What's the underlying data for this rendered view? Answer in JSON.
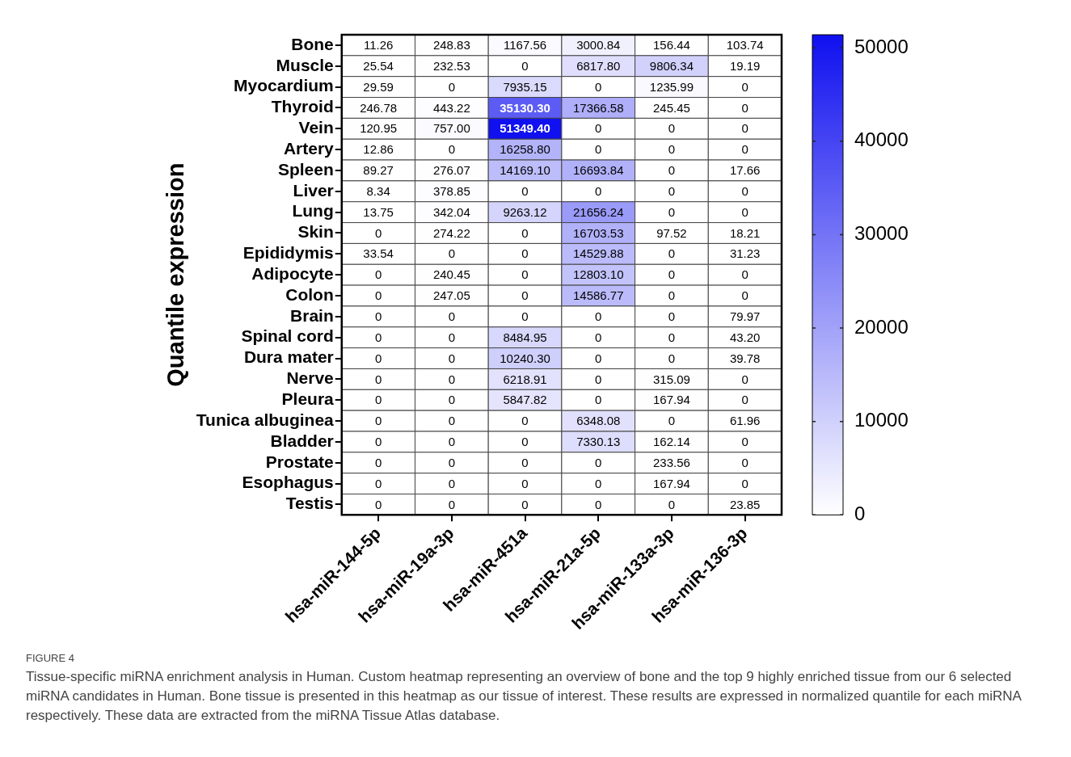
{
  "chart_data": {
    "type": "heatmap",
    "ylabel": "Quantile expression",
    "categories": [
      "hsa-miR-144-5p",
      "hsa-miR-19a-3p",
      "hsa-miR-451a",
      "hsa-miR-21a-5p",
      "hsa-miR-133a-3p",
      "hsa-miR-136-3p"
    ],
    "y_categories": [
      "Bone",
      "Muscle",
      "Myocardium",
      "Thyroid",
      "Vein",
      "Artery",
      "Spleen",
      "Liver",
      "Lung",
      "Skin",
      "Epididymis",
      "Adipocyte",
      "Colon",
      "Brain",
      "Spinal cord",
      "Dura mater",
      "Nerve",
      "Pleura",
      "Tunica albuginea",
      "Bladder",
      "Prostate",
      "Esophagus",
      "Testis"
    ],
    "cells": [
      [
        11.26,
        248.83,
        1167.56,
        3000.84,
        156.44,
        103.74
      ],
      [
        25.54,
        232.53,
        0,
        6817.8,
        9806.34,
        19.19
      ],
      [
        29.59,
        0,
        7935.15,
        0,
        1235.99,
        0
      ],
      [
        246.78,
        443.22,
        35130.3,
        17366.58,
        245.45,
        0
      ],
      [
        120.95,
        757.0,
        51349.4,
        0,
        0,
        0
      ],
      [
        12.86,
        0,
        16258.8,
        0,
        0,
        0
      ],
      [
        89.27,
        276.07,
        14169.1,
        16693.84,
        0,
        17.66
      ],
      [
        8.34,
        378.85,
        0,
        0,
        0,
        0
      ],
      [
        13.75,
        342.04,
        9263.12,
        21656.24,
        0,
        0
      ],
      [
        0,
        274.22,
        0,
        16703.53,
        97.52,
        18.21
      ],
      [
        33.54,
        0,
        0,
        14529.88,
        0,
        31.23
      ],
      [
        0,
        240.45,
        0,
        12803.1,
        0,
        0
      ],
      [
        0,
        247.05,
        0,
        14586.77,
        0,
        0
      ],
      [
        0,
        0,
        0,
        0,
        0,
        79.97
      ],
      [
        0,
        0,
        8484.95,
        0,
        0,
        43.2
      ],
      [
        0,
        0,
        10240.3,
        0,
        0,
        39.78
      ],
      [
        0,
        0,
        6218.91,
        0,
        315.09,
        0
      ],
      [
        0,
        0,
        5847.82,
        0,
        167.94,
        0
      ],
      [
        0,
        0,
        0,
        6348.08,
        0,
        61.96
      ],
      [
        0,
        0,
        0,
        7330.13,
        162.14,
        0
      ],
      [
        0,
        0,
        0,
        0,
        233.56,
        0
      ],
      [
        0,
        0,
        0,
        0,
        167.94,
        0
      ],
      [
        0,
        0,
        0,
        0,
        0,
        23.85
      ]
    ],
    "clim": [
      0,
      51400
    ],
    "cticks": [
      0,
      10000,
      20000,
      30000,
      40000,
      50000
    ],
    "cell_labels": [
      [
        "11.26",
        "248.83",
        "1167.56",
        "3000.84",
        "156.44",
        "103.74"
      ],
      [
        "25.54",
        "232.53",
        "0",
        "6817.80",
        "9806.34",
        "19.19"
      ],
      [
        "29.59",
        "0",
        "7935.15",
        "0",
        "1235.99",
        "0"
      ],
      [
        "246.78",
        "443.22",
        "35130.30",
        "17366.58",
        "245.45",
        "0"
      ],
      [
        "120.95",
        "757.00",
        "51349.40",
        "0",
        "0",
        "0"
      ],
      [
        "12.86",
        "0",
        "16258.80",
        "0",
        "0",
        "0"
      ],
      [
        "89.27",
        "276.07",
        "14169.10",
        "16693.84",
        "0",
        "17.66"
      ],
      [
        "8.34",
        "378.85",
        "0",
        "0",
        "0",
        "0"
      ],
      [
        "13.75",
        "342.04",
        "9263.12",
        "21656.24",
        "0",
        "0"
      ],
      [
        "0",
        "274.22",
        "0",
        "16703.53",
        "97.52",
        "18.21"
      ],
      [
        "33.54",
        "0",
        "0",
        "14529.88",
        "0",
        "31.23"
      ],
      [
        "0",
        "240.45",
        "0",
        "12803.10",
        "0",
        "0"
      ],
      [
        "0",
        "247.05",
        "0",
        "14586.77",
        "0",
        "0"
      ],
      [
        "0",
        "0",
        "0",
        "0",
        "0",
        "79.97"
      ],
      [
        "0",
        "0",
        "8484.95",
        "0",
        "0",
        "43.20"
      ],
      [
        "0",
        "0",
        "10240.30",
        "0",
        "0",
        "39.78"
      ],
      [
        "0",
        "0",
        "6218.91",
        "0",
        "315.09",
        "0"
      ],
      [
        "0",
        "0",
        "5847.82",
        "0",
        "167.94",
        "0"
      ],
      [
        "0",
        "0",
        "0",
        "6348.08",
        "0",
        "61.96"
      ],
      [
        "0",
        "0",
        "0",
        "7330.13",
        "162.14",
        "0"
      ],
      [
        "0",
        "0",
        "0",
        "0",
        "233.56",
        "0"
      ],
      [
        "0",
        "0",
        "0",
        "0",
        "167.94",
        "0"
      ],
      [
        "0",
        "0",
        "0",
        "0",
        "0",
        "23.85"
      ]
    ],
    "annotations": [
      "FIGURE 4",
      "Tissue-specific miRNA enrichment analysis in Human. Custom heatmap representing an overview of bone and the top 9 highly enriched tissue from our 6 selected miRNA candidates in Human. Bone tissue is presented in this heatmap as our tissue of interest. These results are expressed in normalized quantile for each miRNA respectively. These data are extracted from the miRNA Tissue Atlas database."
    ]
  }
}
